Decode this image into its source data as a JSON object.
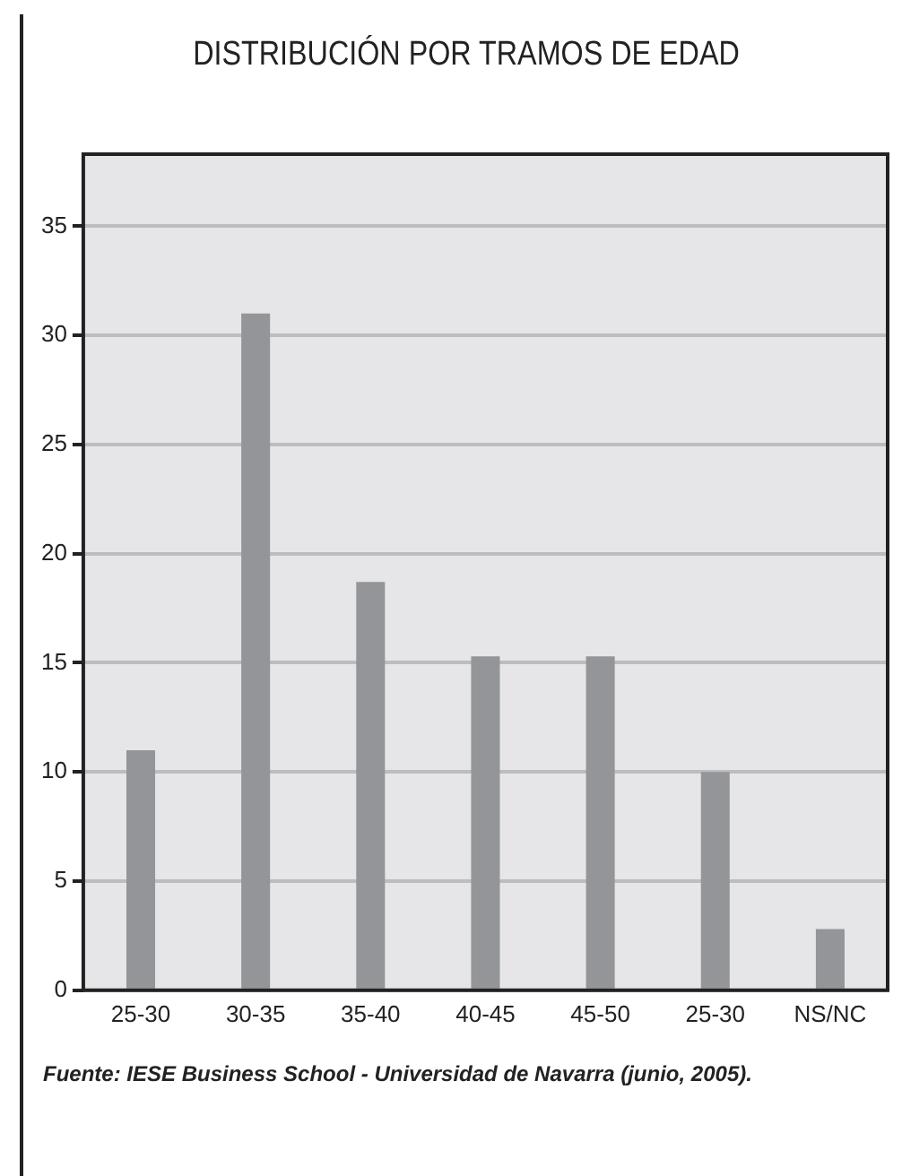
{
  "chart_data": {
    "type": "bar",
    "title": "DISTRIBUCIÓN POR TRAMOS DE EDAD",
    "categories": [
      "25-30",
      "30-35",
      "35-40",
      "40-45",
      "45-50",
      "25-30",
      "NS/NC"
    ],
    "values": [
      11,
      31,
      18.7,
      15.3,
      15.3,
      10,
      2.8
    ],
    "color": "#939598",
    "ylim": [
      0,
      38.3
    ],
    "yticks": [
      0,
      5,
      10,
      15,
      20,
      25,
      30,
      35
    ],
    "grid": "y",
    "annotations": [
      "Fuente: IESE Business School - Universidad de Navarra (junio, 2005)."
    ]
  }
}
